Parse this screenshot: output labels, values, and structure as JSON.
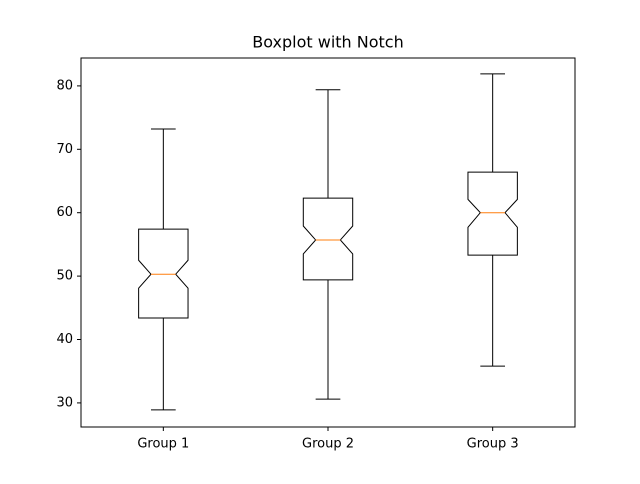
{
  "chart_data": {
    "type": "boxplot",
    "title": "Boxplot with Notch",
    "categories": [
      "Group 1",
      "Group 2",
      "Group 3"
    ],
    "boxes": [
      {
        "whislo": 28.9,
        "q1": 43.4,
        "notch_low": 48.1,
        "med": 50.3,
        "notch_high": 52.5,
        "q3": 57.4,
        "whishi": 73.2
      },
      {
        "whislo": 30.6,
        "q1": 49.4,
        "notch_low": 53.5,
        "med": 55.7,
        "notch_high": 57.9,
        "q3": 62.3,
        "whishi": 79.4
      },
      {
        "whislo": 35.8,
        "q1": 53.3,
        "notch_low": 57.7,
        "med": 60.0,
        "notch_high": 62.1,
        "q3": 66.4,
        "whishi": 81.9
      }
    ],
    "box_color": "#000000",
    "median_color": "#ff7f0e",
    "ylim": [
      26.2,
      84.4
    ],
    "yticks": [
      30,
      40,
      50,
      60,
      70,
      80
    ],
    "grid": false
  }
}
